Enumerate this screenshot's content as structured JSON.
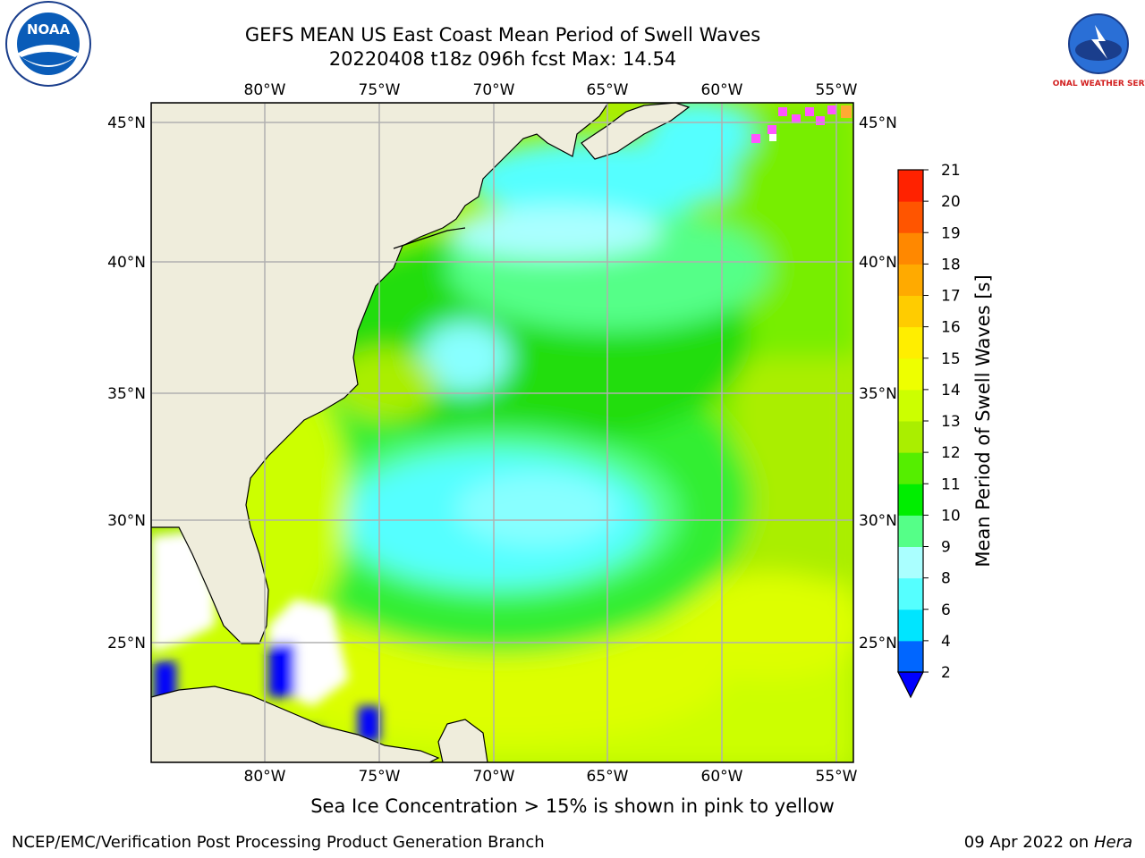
{
  "title_line1": "GEFS MEAN US East Coast Mean Period of Swell Waves",
  "title_line2": "20220408 t18z 096h fcst   Max: 14.54",
  "subtitle_note": "Sea Ice Concentration > 15% is shown in pink to yellow",
  "footer_left": "NCEP/EMC/Verification Post Processing Product Generation Branch",
  "footer_date": "09 Apr 2022 on",
  "footer_host": "Hera",
  "logos": {
    "left": "NOAA",
    "right": "NATIONAL WEATHER SERVICE"
  },
  "map": {
    "lon_ticks": [
      "80°W",
      "75°W",
      "70°W",
      "65°W",
      "60°W",
      "55°W"
    ],
    "lat_ticks": [
      "45°N",
      "40°N",
      "35°N",
      "30°N",
      "25°N"
    ],
    "colors": {
      "land": "#efeddc",
      "ice_free_missing": "#ffffff",
      "grid": "#b0b0b0"
    }
  },
  "colorbar": {
    "label": "Mean Period of Swell Waves [s]",
    "ticks": [
      "2",
      "4",
      "6",
      "8",
      "9",
      "10",
      "11",
      "12",
      "13",
      "14",
      "15",
      "16",
      "17",
      "18",
      "19",
      "20",
      "21"
    ],
    "colors": [
      "#0066ff",
      "#00e5ff",
      "#55ffff",
      "#aaffff",
      "#55ff88",
      "#00ee00",
      "#55ee00",
      "#aaee00",
      "#ccff00",
      "#eeff00",
      "#ffee00",
      "#ffcc00",
      "#ffaa00",
      "#ff8800",
      "#ff5500",
      "#ff2200"
    ],
    "under_color": "#0000ff"
  }
}
